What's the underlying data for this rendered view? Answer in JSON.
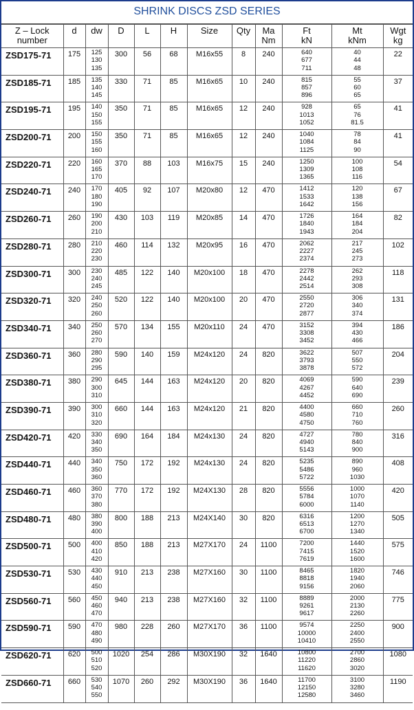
{
  "title": "SHRINK DISCS ZSD SERIES",
  "colors": {
    "title": "#1f4e9c",
    "border": "#1c3c8c"
  },
  "headers": [
    [
      "Z – Lock",
      "number"
    ],
    [
      "d"
    ],
    [
      "dw"
    ],
    [
      "D"
    ],
    [
      "L"
    ],
    [
      "H"
    ],
    [
      "Size"
    ],
    [
      "Qty"
    ],
    [
      "Ma",
      "Nm"
    ],
    [
      "Ft",
      "kN"
    ],
    [
      "Mt",
      "kNm"
    ],
    [
      "Wgt",
      "kg"
    ]
  ],
  "rows": [
    {
      "name": "ZSD175-71",
      "d": "175",
      "dw": [
        "125",
        "130",
        "135"
      ],
      "D": "300",
      "L": "56",
      "H": "68",
      "size": "M16x55",
      "qty": "8",
      "ma": "240",
      "ft": [
        "640",
        "677",
        "711"
      ],
      "mt": [
        "40",
        "44",
        "48"
      ],
      "wgt": "22"
    },
    {
      "name": "ZSD185-71",
      "d": "185",
      "dw": [
        "135",
        "140",
        "145"
      ],
      "D": "330",
      "L": "71",
      "H": "85",
      "size": "M16x65",
      "qty": "10",
      "ma": "240",
      "ft": [
        "815",
        "857",
        "896"
      ],
      "mt": [
        "55",
        "60",
        "65"
      ],
      "wgt": "37"
    },
    {
      "name": "ZSD195-71",
      "d": "195",
      "dw": [
        "140",
        "150",
        "155"
      ],
      "D": "350",
      "L": "71",
      "H": "85",
      "size": "M16x65",
      "qty": "12",
      "ma": "240",
      "ft": [
        "928",
        "1013",
        "1052"
      ],
      "mt": [
        "65",
        "76",
        "81.5"
      ],
      "wgt": "41"
    },
    {
      "name": "ZSD200-71",
      "d": "200",
      "dw": [
        "150",
        "155",
        "160"
      ],
      "D": "350",
      "L": "71",
      "H": "85",
      "size": "M16x65",
      "qty": "12",
      "ma": "240",
      "ft": [
        "1040",
        "1084",
        "1125"
      ],
      "mt": [
        "78",
        "84",
        "90"
      ],
      "wgt": "41"
    },
    {
      "name": "ZSD220-71",
      "d": "220",
      "dw": [
        "160",
        "165",
        "170"
      ],
      "D": "370",
      "L": "88",
      "H": "103",
      "size": "M16x75",
      "qty": "15",
      "ma": "240",
      "ft": [
        "1250",
        "1309",
        "1365"
      ],
      "mt": [
        "100",
        "108",
        "116"
      ],
      "wgt": "54"
    },
    {
      "name": "ZSD240-71",
      "d": "240",
      "dw": [
        "170",
        "180",
        "190"
      ],
      "D": "405",
      "L": "92",
      "H": "107",
      "size": "M20x80",
      "qty": "12",
      "ma": "470",
      "ft": [
        "1412",
        "1533",
        "1642"
      ],
      "mt": [
        "120",
        "138",
        "156"
      ],
      "wgt": "67"
    },
    {
      "name": "ZSD260-71",
      "d": "260",
      "dw": [
        "190",
        "200",
        "210"
      ],
      "D": "430",
      "L": "103",
      "H": "119",
      "size": "M20x85",
      "qty": "14",
      "ma": "470",
      "ft": [
        "1726",
        "1840",
        "1943"
      ],
      "mt": [
        "164",
        "184",
        "204"
      ],
      "wgt": "82"
    },
    {
      "name": "ZSD280-71",
      "d": "280",
      "dw": [
        "210",
        "220",
        "230"
      ],
      "D": "460",
      "L": "114",
      "H": "132",
      "size": "M20x95",
      "qty": "16",
      "ma": "470",
      "ft": [
        "2062",
        "2227",
        "2374"
      ],
      "mt": [
        "217",
        "245",
        "273"
      ],
      "wgt": "102"
    },
    {
      "name": "ZSD300-71",
      "d": "300",
      "dw": [
        "230",
        "240",
        "245"
      ],
      "D": "485",
      "L": "122",
      "H": "140",
      "size": "M20x100",
      "qty": "18",
      "ma": "470",
      "ft": [
        "2278",
        "2442",
        "2514"
      ],
      "mt": [
        "262",
        "293",
        "308"
      ],
      "wgt": "118"
    },
    {
      "name": "ZSD320-71",
      "d": "320",
      "dw": [
        "240",
        "250",
        "260"
      ],
      "D": "520",
      "L": "122",
      "H": "140",
      "size": "M20x100",
      "qty": "20",
      "ma": "470",
      "ft": [
        "2550",
        "2720",
        "2877"
      ],
      "mt": [
        "306",
        "340",
        "374"
      ],
      "wgt": "131"
    },
    {
      "name": "ZSD340-71",
      "d": "340",
      "dw": [
        "250",
        "260",
        "270"
      ],
      "D": "570",
      "L": "134",
      "H": "155",
      "size": "M20x110",
      "qty": "24",
      "ma": "470",
      "ft": [
        "3152",
        "3308",
        "3452"
      ],
      "mt": [
        "394",
        "430",
        "466"
      ],
      "wgt": "186"
    },
    {
      "name": "ZSD360-71",
      "d": "360",
      "dw": [
        "280",
        "290",
        "295"
      ],
      "D": "590",
      "L": "140",
      "H": "159",
      "size": "M24x120",
      "qty": "24",
      "ma": "820",
      "ft": [
        "3622",
        "3793",
        "3878"
      ],
      "mt": [
        "507",
        "550",
        "572"
      ],
      "wgt": "204"
    },
    {
      "name": "ZSD380-71",
      "d": "380",
      "dw": [
        "290",
        "300",
        "310"
      ],
      "D": "645",
      "L": "144",
      "H": "163",
      "size": "M24x120",
      "qty": "20",
      "ma": "820",
      "ft": [
        "4069",
        "4267",
        "4452"
      ],
      "mt": [
        "590",
        "640",
        "690"
      ],
      "wgt": "239"
    },
    {
      "name": "ZSD390-71",
      "d": "390",
      "dw": [
        "300",
        "310",
        "320"
      ],
      "D": "660",
      "L": "144",
      "H": "163",
      "size": "M24x120",
      "qty": "21",
      "ma": "820",
      "ft": [
        "4400",
        "4580",
        "4750"
      ],
      "mt": [
        "660",
        "710",
        "760"
      ],
      "wgt": "260"
    },
    {
      "name": "ZSD420-71",
      "d": "420",
      "dw": [
        "330",
        "340",
        "350"
      ],
      "D": "690",
      "L": "164",
      "H": "184",
      "size": "M24x130",
      "qty": "24",
      "ma": "820",
      "ft": [
        "4727",
        "4940",
        "5143"
      ],
      "mt": [
        "780",
        "840",
        "900"
      ],
      "wgt": "316"
    },
    {
      "name": "ZSD440-71",
      "d": "440",
      "dw": [
        "340",
        "350",
        "360"
      ],
      "D": "750",
      "L": "172",
      "H": "192",
      "size": "M24x130",
      "qty": "24",
      "ma": "820",
      "ft": [
        "5235",
        "5486",
        "5722"
      ],
      "mt": [
        "890",
        "960",
        "1030"
      ],
      "wgt": "408"
    },
    {
      "name": "ZSD460-71",
      "d": "460",
      "dw": [
        "360",
        "370",
        "380"
      ],
      "D": "770",
      "L": "172",
      "H": "192",
      "size": "M24X130",
      "qty": "28",
      "ma": "820",
      "ft": [
        "5556",
        "5784",
        "6000"
      ],
      "mt": [
        "1000",
        "1070",
        "1140"
      ],
      "wgt": "420"
    },
    {
      "name": "ZSD480-71",
      "d": "480",
      "dw": [
        "380",
        "390",
        "400"
      ],
      "D": "800",
      "L": "188",
      "H": "213",
      "size": "M24X140",
      "qty": "30",
      "ma": "820",
      "ft": [
        "6316",
        "6513",
        "6700"
      ],
      "mt": [
        "1200",
        "1270",
        "1340"
      ],
      "wgt": "505"
    },
    {
      "name": "ZSD500-71",
      "d": "500",
      "dw": [
        "400",
        "410",
        "420"
      ],
      "D": "850",
      "L": "188",
      "H": "213",
      "size": "M27X170",
      "qty": "24",
      "ma": "1100",
      "ft": [
        "7200",
        "7415",
        "7619"
      ],
      "mt": [
        "1440",
        "1520",
        "1600"
      ],
      "wgt": "575"
    },
    {
      "name": "ZSD530-71",
      "d": "530",
      "dw": [
        "430",
        "440",
        "450"
      ],
      "D": "910",
      "L": "213",
      "H": "238",
      "size": "M27X160",
      "qty": "30",
      "ma": "1100",
      "ft": [
        "8465",
        "8818",
        "9156"
      ],
      "mt": [
        "1820",
        "1940",
        "2060"
      ],
      "wgt": "746"
    },
    {
      "name": "ZSD560-71",
      "d": "560",
      "dw": [
        "450",
        "460",
        "470"
      ],
      "D": "940",
      "L": "213",
      "H": "238",
      "size": "M27X160",
      "qty": "32",
      "ma": "1100",
      "ft": [
        "8889",
        "9261",
        "9617"
      ],
      "mt": [
        "2000",
        "2130",
        "2260"
      ],
      "wgt": "775"
    },
    {
      "name": "ZSD590-71",
      "d": "590",
      "dw": [
        "470",
        "480",
        "490"
      ],
      "D": "980",
      "L": "228",
      "H": "260",
      "size": "M27X170",
      "qty": "36",
      "ma": "1100",
      "ft": [
        "9574",
        "10000",
        "10410"
      ],
      "mt": [
        "2250",
        "2400",
        "2550"
      ],
      "wgt": "900"
    },
    {
      "name": "ZSD620-71",
      "d": "620",
      "dw": [
        "500",
        "510",
        "520"
      ],
      "D": "1020",
      "L": "254",
      "H": "286",
      "size": "M30X190",
      "qty": "32",
      "ma": "1640",
      "ft": [
        "10800",
        "11220",
        "11620"
      ],
      "mt": [
        "2700",
        "2860",
        "3020"
      ],
      "wgt": "1080"
    },
    {
      "name": "ZSD660-71",
      "d": "660",
      "dw": [
        "530",
        "540",
        "550"
      ],
      "D": "1070",
      "L": "260",
      "H": "292",
      "size": "M30X190",
      "qty": "36",
      "ma": "1640",
      "ft": [
        "11700",
        "12150",
        "12580"
      ],
      "mt": [
        "3100",
        "3280",
        "3460"
      ],
      "wgt": "1190"
    }
  ]
}
